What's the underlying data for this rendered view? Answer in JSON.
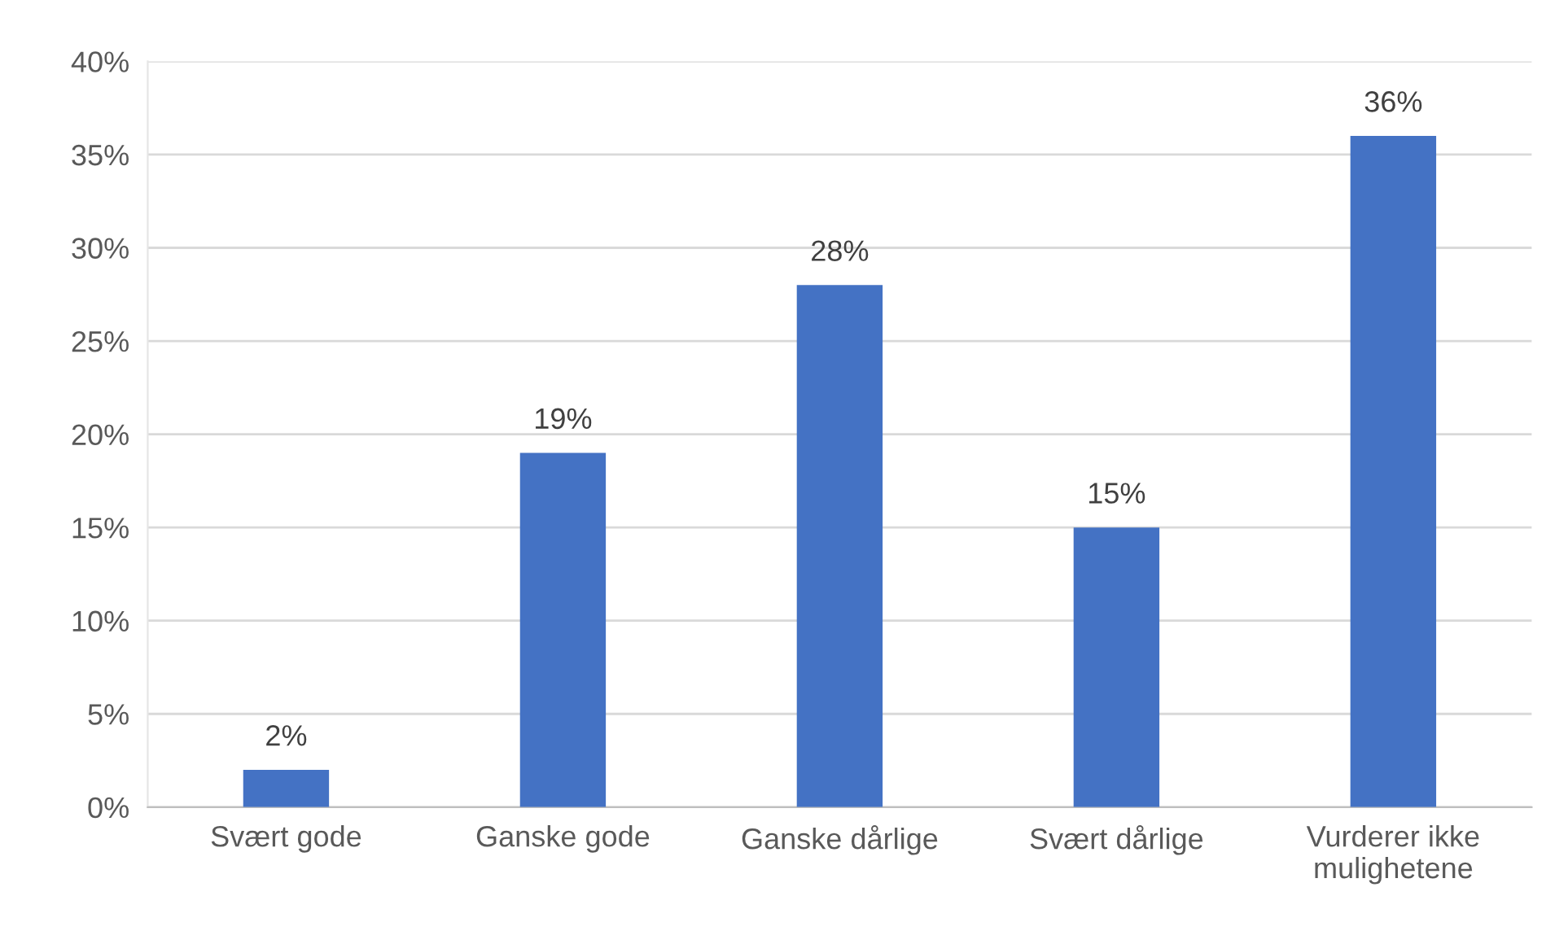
{
  "chart_data": {
    "type": "bar",
    "categories": [
      "Svært gode",
      "Ganske gode",
      "Ganske dårlige",
      "Svært dårlige",
      "Vurderer ikke\nmulighetene"
    ],
    "values": [
      2,
      19,
      28,
      15,
      36
    ],
    "value_labels": [
      "2%",
      "19%",
      "28%",
      "15%",
      "36%"
    ],
    "color": "#4472c4",
    "ylim": [
      0,
      40
    ],
    "yticks": [
      {
        "value": 0,
        "label": "0%"
      },
      {
        "value": 5,
        "label": "5%"
      },
      {
        "value": 10,
        "label": "10%"
      },
      {
        "value": 15,
        "label": "15%"
      },
      {
        "value": 20,
        "label": "20%"
      },
      {
        "value": 25,
        "label": "25%"
      },
      {
        "value": 30,
        "label": "30%"
      },
      {
        "value": 35,
        "label": "35%"
      },
      {
        "value": 40,
        "label": "40%"
      }
    ],
    "grid": "y"
  }
}
